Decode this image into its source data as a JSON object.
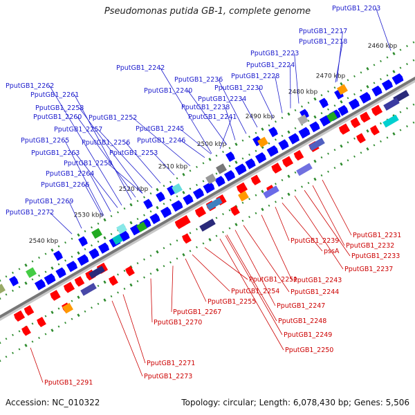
{
  "title": "Pseudomonas putida GB-1, complete genome",
  "footer": {
    "accession": "Accession: NC_010322",
    "summary": "Topology: circular; Length: 6,078,430 bp; Genes: 5,506"
  },
  "colors": {
    "forward_label": "#1a1acc",
    "reverse_label": "#cc0000",
    "backbone": "#777777",
    "tick": "#2e8b2e",
    "forward_gene": "#0000ff",
    "reverse_gene": "#ff0000"
  },
  "scale_labels": [
    "2460 kbp",
    "2470 kbp",
    "2480 kbp",
    "2490 kbp",
    "2500 kbp",
    "2510 kbp",
    "2520 kbp",
    "2530 kbp",
    "2540 kbp"
  ],
  "forward_labels": [
    "PputGB1_2203",
    "PputGB1_2217",
    "PputGB1_2218",
    "PputGB1_2223",
    "PputGB1_2224",
    "PputGB1_2228",
    "PputGB1_2230",
    "PputGB1_2234",
    "PputGB1_2236",
    "PputGB1_2238",
    "PputGB1_2240",
    "PputGB1_2241",
    "PputGB1_2242",
    "PputGB1_2245",
    "PputGB1_2246",
    "PputGB1_2252",
    "PputGB1_2253",
    "PputGB1_2256",
    "PputGB1_2257",
    "PputGB1_2258",
    "PputGB1_2259",
    "PputGB1_2260",
    "PputGB1_2261",
    "PputGB1_2262",
    "PputGB1_2263",
    "PputGB1_2264",
    "PputGB1_2265",
    "PputGB1_2266",
    "PputGB1_2269",
    "PputGB1_2272"
  ],
  "reverse_labels": [
    "PputGB1_2231",
    "PputGB1_2232",
    "PputGB1_2233",
    "PputGB1_2237",
    "pssA",
    "PputGB1_2239",
    "PputGB1_2243",
    "PputGB1_2244",
    "PputGB1_2247",
    "PputGB1_2248",
    "PputGB1_2249",
    "PputGB1_2250",
    "PputGB1_2251",
    "PputGB1_2254",
    "PputGB1_2255",
    "PputGB1_2267",
    "PputGB1_2270",
    "PputGB1_2271",
    "PputGB1_2273",
    "PputGB1_2291"
  ]
}
